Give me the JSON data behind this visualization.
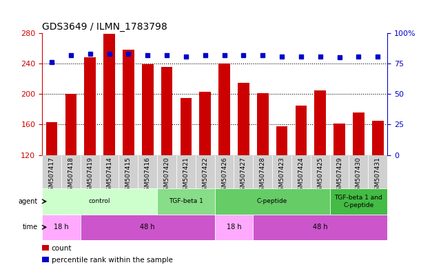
{
  "title": "GDS3649 / ILMN_1783798",
  "samples": [
    "GSM507417",
    "GSM507418",
    "GSM507419",
    "GSM507414",
    "GSM507415",
    "GSM507416",
    "GSM507420",
    "GSM507421",
    "GSM507422",
    "GSM507426",
    "GSM507427",
    "GSM507428",
    "GSM507423",
    "GSM507424",
    "GSM507425",
    "GSM507429",
    "GSM507430",
    "GSM507431"
  ],
  "bar_values": [
    163,
    200,
    248,
    279,
    258,
    239,
    236,
    195,
    203,
    240,
    215,
    201,
    158,
    185,
    205,
    161,
    176,
    165
  ],
  "percentile_values": [
    76,
    82,
    83,
    83,
    83,
    82,
    82,
    81,
    82,
    82,
    82,
    82,
    81,
    81,
    81,
    80,
    81,
    81
  ],
  "bar_color": "#cc0000",
  "percentile_color": "#0000cc",
  "ylim_left": [
    120,
    280
  ],
  "ylim_right": [
    0,
    100
  ],
  "yticks_left": [
    120,
    160,
    200,
    240,
    280
  ],
  "yticks_right": [
    0,
    25,
    50,
    75,
    100
  ],
  "dotted_lines": [
    160,
    200,
    240
  ],
  "agent_groups": [
    {
      "label": "control",
      "start": 0,
      "end": 6,
      "color": "#ccffcc"
    },
    {
      "label": "TGF-beta 1",
      "start": 6,
      "end": 9,
      "color": "#88dd88"
    },
    {
      "label": "C-peptide",
      "start": 9,
      "end": 15,
      "color": "#66cc66"
    },
    {
      "label": "TGF-beta 1 and\nC-peptide",
      "start": 15,
      "end": 18,
      "color": "#44bb44"
    }
  ],
  "time_groups": [
    {
      "label": "18 h",
      "start": 0,
      "end": 2,
      "color": "#ffaaff"
    },
    {
      "label": "48 h",
      "start": 2,
      "end": 9,
      "color": "#cc55cc"
    },
    {
      "label": "18 h",
      "start": 9,
      "end": 11,
      "color": "#ffaaff"
    },
    {
      "label": "48 h",
      "start": 11,
      "end": 18,
      "color": "#cc55cc"
    }
  ],
  "legend_items": [
    {
      "label": "count",
      "color": "#cc0000"
    },
    {
      "label": "percentile rank within the sample",
      "color": "#0000cc"
    }
  ],
  "title_fontsize": 10,
  "tick_fontsize": 6.5,
  "row_fontsize": 7.5,
  "legend_fontsize": 7.5
}
